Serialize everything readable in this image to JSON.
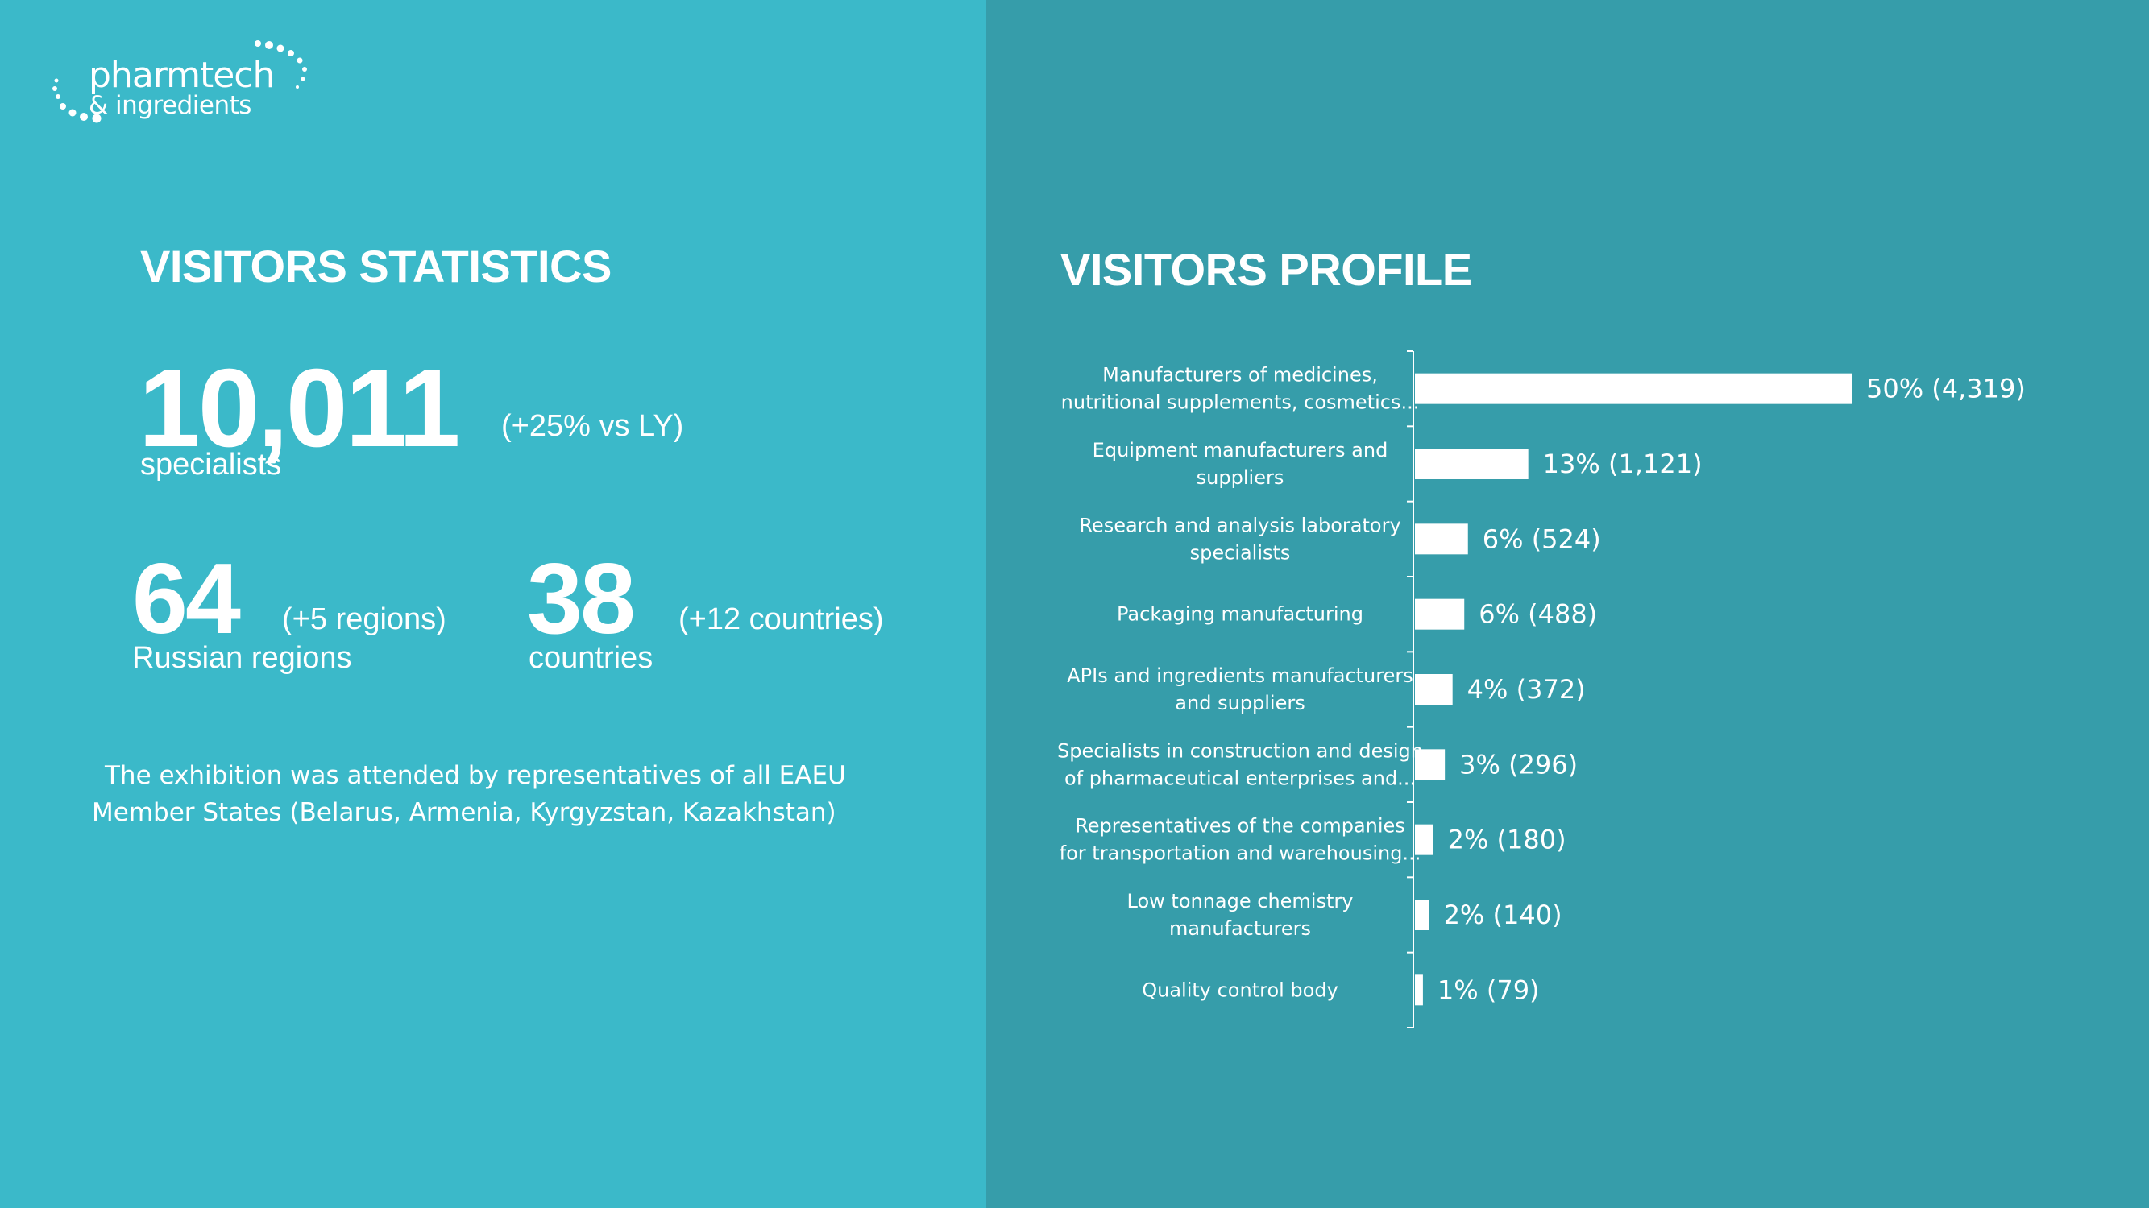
{
  "logo": {
    "line1": "pharmtech",
    "line2": "& ingredients"
  },
  "left": {
    "title": "VISITORS STATISTICS",
    "specialists": {
      "value": "10,011",
      "delta": "(+25% vs LY)",
      "caption": "specialists"
    },
    "regions": {
      "value": "64",
      "delta": "(+5 regions)",
      "caption": "Russian regions"
    },
    "countries": {
      "value": "38",
      "delta": "(+12 countries)",
      "caption": "countries"
    },
    "note": "The exhibition was attended by representatives of all EAEU Member States (Belarus, Armenia, Kyrgyzstan, Kazakhstan)"
  },
  "right": {
    "title": "VISITORS PROFILE"
  },
  "colors": {
    "left_bg": "#3bb9c9",
    "right_bg": "#369daa",
    "bar": "#ffffff",
    "text": "#ffffff"
  },
  "chart_data": {
    "type": "bar",
    "orientation": "horizontal",
    "title": "VISITORS PROFILE",
    "categories": [
      [
        "Manufacturers of medicines,",
        "nutritional supplements, cosmetics..."
      ],
      [
        "Equipment manufacturers and",
        "suppliers"
      ],
      [
        "Research and analysis laboratory",
        "specialists"
      ],
      [
        "Packaging manufacturing"
      ],
      [
        "APIs and ingredients manufacturers",
        "and suppliers"
      ],
      [
        "Specialists in construction and design",
        "of pharmaceutical enterprises and..."
      ],
      [
        "Representatives of the companies",
        "for transportation and warehousing..."
      ],
      [
        "Low tonnage chemistry",
        "manufacturers"
      ],
      [
        "Quality control body"
      ]
    ],
    "values": [
      4319,
      1121,
      524,
      488,
      372,
      296,
      180,
      140,
      79
    ],
    "data_labels": [
      "50% (4,319)",
      "13% (1,121)",
      "6% (524)",
      "6% (488)",
      "4% (372)",
      "3% (296)",
      "2% (180)",
      "2% (140)",
      "1% (79)"
    ],
    "xlim": [
      0,
      4319
    ],
    "grid": false,
    "legend": "none"
  }
}
